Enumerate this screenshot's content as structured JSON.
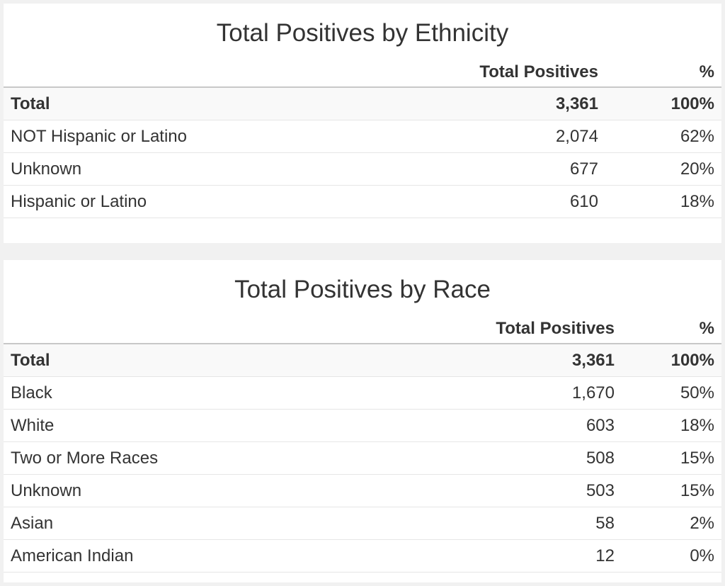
{
  "ethnicity": {
    "title": "Total Positives by Ethnicity",
    "headers": {
      "label": "",
      "count": "Total Positives",
      "pct": "%"
    },
    "total": {
      "label": "Total",
      "count": "3,361",
      "pct": "100%"
    },
    "rows": [
      {
        "label": "NOT Hispanic or Latino",
        "count": "2,074",
        "pct": "62%"
      },
      {
        "label": "Unknown",
        "count": "677",
        "pct": "20%"
      },
      {
        "label": "Hispanic or Latino",
        "count": "610",
        "pct": "18%"
      }
    ]
  },
  "race": {
    "title": "Total Positives by Race",
    "headers": {
      "label": "",
      "count": "Total Positives",
      "pct": "%"
    },
    "total": {
      "label": "Total",
      "count": "3,361",
      "pct": "100%"
    },
    "rows": [
      {
        "label": "Black",
        "count": "1,670",
        "pct": "50%"
      },
      {
        "label": "White",
        "count": "603",
        "pct": "18%"
      },
      {
        "label": "Two or More Races",
        "count": "508",
        "pct": "15%"
      },
      {
        "label": "Unknown",
        "count": "503",
        "pct": "15%"
      },
      {
        "label": "Asian",
        "count": "58",
        "pct": "2%"
      },
      {
        "label": "American Indian",
        "count": "12",
        "pct": "0%"
      }
    ]
  }
}
